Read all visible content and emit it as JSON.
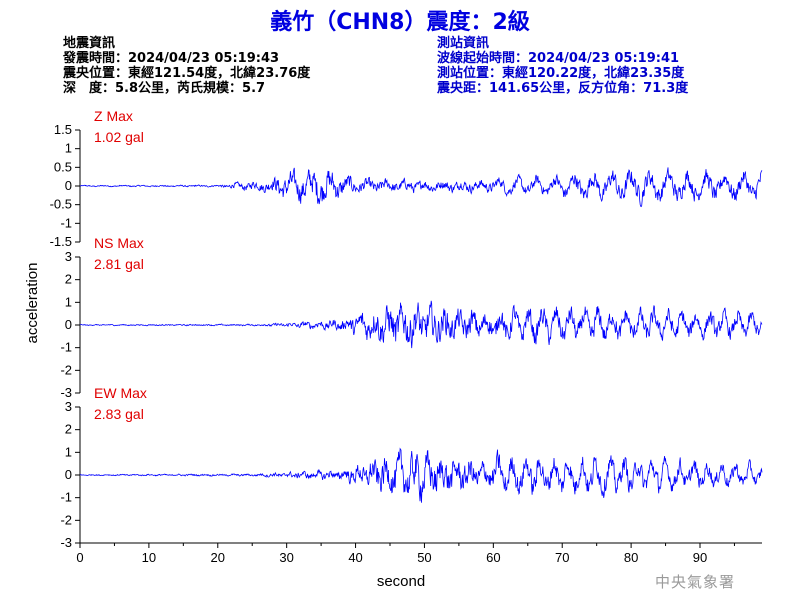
{
  "title": "義竹（CHN8）震度：2級",
  "quake_info": {
    "heading": "地震資訊",
    "time": "發震時間：2024/04/23 05:19:43",
    "epicenter": "震央位置：東經121.54度，北緯23.76度",
    "depth_magnitude": "深　度：5.8公里，芮氏規模：5.7"
  },
  "station_info": {
    "heading": "測站資訊",
    "wave_start": "波線起始時間：2024/04/23 05:19:41",
    "location": "測站位置：東經120.22度，北緯23.35度",
    "distance": "震央距：141.65公里，反方位角：71.3度"
  },
  "agency": "中央氣象署",
  "colors": {
    "title": "#0000e0",
    "trace": "#0000ff",
    "max_label": "#e00000",
    "station_info": "#0000cc"
  },
  "chart_data": {
    "type": "line",
    "xlabel": "second",
    "ylabel": "acceleration",
    "xlim": [
      0,
      99
    ],
    "x_ticks": [
      "0",
      "10",
      "20",
      "30",
      "40",
      "50",
      "60",
      "70",
      "80",
      "90"
    ],
    "grid": false,
    "panels": [
      {
        "name": "Z",
        "max_label": "Z Max",
        "max_value": "1.02 gal",
        "ylim": [
          -1.5,
          1.5
        ],
        "y_ticks": [
          "1.5",
          "1",
          "0.5",
          "0",
          "-0.5",
          "-1",
          "-1.5"
        ],
        "envelope": [
          [
            0,
            0.03
          ],
          [
            20,
            0.04
          ],
          [
            22,
            0.12
          ],
          [
            27,
            0.25
          ],
          [
            30,
            0.55
          ],
          [
            35,
            0.75
          ],
          [
            37,
            0.6
          ],
          [
            40,
            0.3
          ],
          [
            50,
            0.25
          ],
          [
            60,
            0.25
          ],
          [
            68,
            0.3
          ],
          [
            72,
            0.4
          ],
          [
            80,
            0.5
          ],
          [
            90,
            0.45
          ],
          [
            99,
            0.45
          ]
        ]
      },
      {
        "name": "NS",
        "max_label": "NS Max",
        "max_value": "2.81 gal",
        "ylim": [
          -3,
          3
        ],
        "y_ticks": [
          "3",
          "2",
          "1",
          "0",
          "-1",
          "-2",
          "-3"
        ],
        "envelope": [
          [
            0,
            0.04
          ],
          [
            25,
            0.06
          ],
          [
            30,
            0.15
          ],
          [
            38,
            0.4
          ],
          [
            42,
            1.1
          ],
          [
            47,
            1.6
          ],
          [
            50,
            1.4
          ],
          [
            55,
            1.0
          ],
          [
            65,
            0.9
          ],
          [
            75,
            0.9
          ],
          [
            85,
            0.75
          ],
          [
            99,
            0.65
          ]
        ]
      },
      {
        "name": "EW",
        "max_label": "EW Max",
        "max_value": "2.83 gal",
        "ylim": [
          -3,
          3
        ],
        "y_ticks": [
          "3",
          "2",
          "1",
          "0",
          "-1",
          "-2",
          "-3"
        ],
        "envelope": [
          [
            0,
            0.04
          ],
          [
            25,
            0.08
          ],
          [
            30,
            0.2
          ],
          [
            38,
            0.4
          ],
          [
            42,
            1.0
          ],
          [
            47,
            1.6
          ],
          [
            50,
            1.6
          ],
          [
            55,
            1.1
          ],
          [
            65,
            1.0
          ],
          [
            75,
            1.0
          ],
          [
            85,
            0.8
          ],
          [
            99,
            0.55
          ]
        ]
      }
    ]
  }
}
